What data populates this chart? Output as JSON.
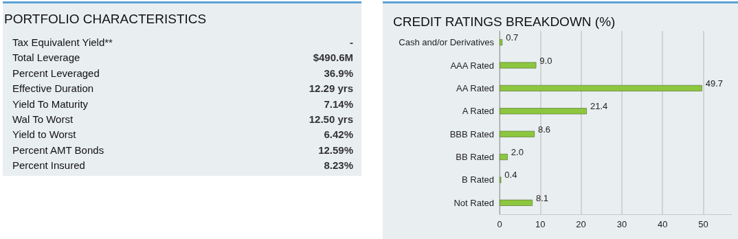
{
  "chart_data": [
    {
      "type": "other",
      "title": "PORTFOLIO CHARACTERISTICS",
      "categories": [
        "Tax Equivalent Yield**",
        "Total Leverage",
        "Percent Leveraged",
        "Effective Duration",
        "Yield To Maturity",
        "Wal To Worst",
        "Yield to Worst",
        "Percent AMT Bonds",
        "Percent Insured"
      ],
      "value_labels": [
        "-",
        "$490.6M",
        "36.9%",
        "12.29 yrs",
        "7.14%",
        "12.50 yrs",
        "6.42%",
        "12.59%",
        "8.23%"
      ]
    },
    {
      "type": "bar",
      "orientation": "horizontal",
      "title": "CREDIT RATINGS BREAKDOWN (%)",
      "categories": [
        "Cash and/or Derivatives",
        "AAA Rated",
        "AA Rated",
        "A Rated",
        "BBB Rated",
        "BB Rated",
        "B Rated",
        "Not Rated"
      ],
      "values": [
        0.7,
        9.0,
        49.7,
        21.4,
        8.6,
        2.0,
        0.4,
        8.1
      ],
      "value_labels": [
        "0.7",
        "9.0",
        "49.7",
        "21.4",
        "8.6",
        "2.0",
        "0.4",
        "8.1"
      ],
      "color": "#8dc63f",
      "xlim": [
        0,
        57
      ],
      "xticks": [
        0,
        10,
        20,
        30,
        40,
        50
      ],
      "grid": "x"
    }
  ]
}
